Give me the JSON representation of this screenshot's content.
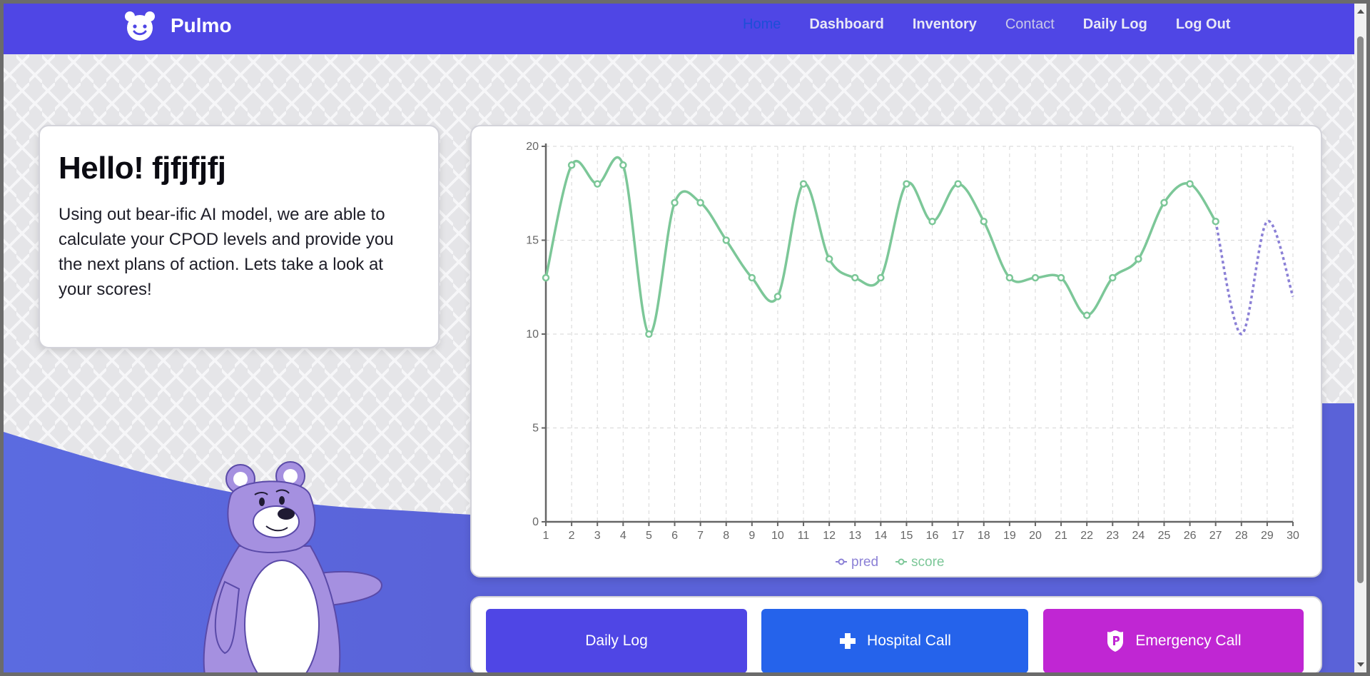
{
  "brand": {
    "name": "Pulmo",
    "logo_icon": "bear-face-icon"
  },
  "nav": {
    "items": [
      {
        "label": "Home",
        "state": "active"
      },
      {
        "label": "Dashboard",
        "state": "normal"
      },
      {
        "label": "Inventory",
        "state": "normal"
      },
      {
        "label": "Contact",
        "state": "muted"
      },
      {
        "label": "Daily Log",
        "state": "normal"
      },
      {
        "label": "Log Out",
        "state": "normal"
      }
    ]
  },
  "greeting": {
    "title": "Hello! fjfjfjfj",
    "text": "Using out bear-ific AI model, we are able to calculate your CPOD levels and provide you the next plans of action. Lets take a look at your scores!"
  },
  "chart_data": {
    "type": "line",
    "x": [
      1,
      2,
      3,
      4,
      5,
      6,
      7,
      8,
      9,
      10,
      11,
      12,
      13,
      14,
      15,
      16,
      17,
      18,
      19,
      20,
      21,
      22,
      23,
      24,
      25,
      26,
      27,
      28,
      29,
      30
    ],
    "ylim": [
      0,
      20
    ],
    "yticks": [
      0,
      5,
      10,
      15,
      20
    ],
    "grid": true,
    "legend_position": "bottom-center",
    "series": [
      {
        "name": "pred",
        "color": "#8b80d6",
        "style": "dotted",
        "x": [
          27,
          28,
          29,
          30
        ],
        "values": [
          16,
          10,
          16,
          12
        ]
      },
      {
        "name": "score",
        "color": "#7cc798",
        "style": "solid",
        "x": [
          1,
          2,
          3,
          4,
          5,
          6,
          7,
          8,
          9,
          10,
          11,
          12,
          13,
          14,
          15,
          16,
          17,
          18,
          19,
          20,
          21,
          22,
          23,
          24,
          25,
          26,
          27
        ],
        "values": [
          13,
          19,
          18,
          19,
          10,
          17,
          17,
          15,
          13,
          12,
          18,
          14,
          13,
          13,
          18,
          16,
          18,
          16,
          13,
          13,
          13,
          11,
          13,
          14,
          17,
          18,
          16
        ]
      }
    ]
  },
  "actions": {
    "daily_log": "Daily Log",
    "hospital_call": "Hospital Call",
    "emergency_call": "Emergency Call"
  },
  "colors": {
    "primary": "#4f46e5",
    "hospital": "#2563eb",
    "emergency": "#c026d3",
    "bear": "#a590e0"
  }
}
